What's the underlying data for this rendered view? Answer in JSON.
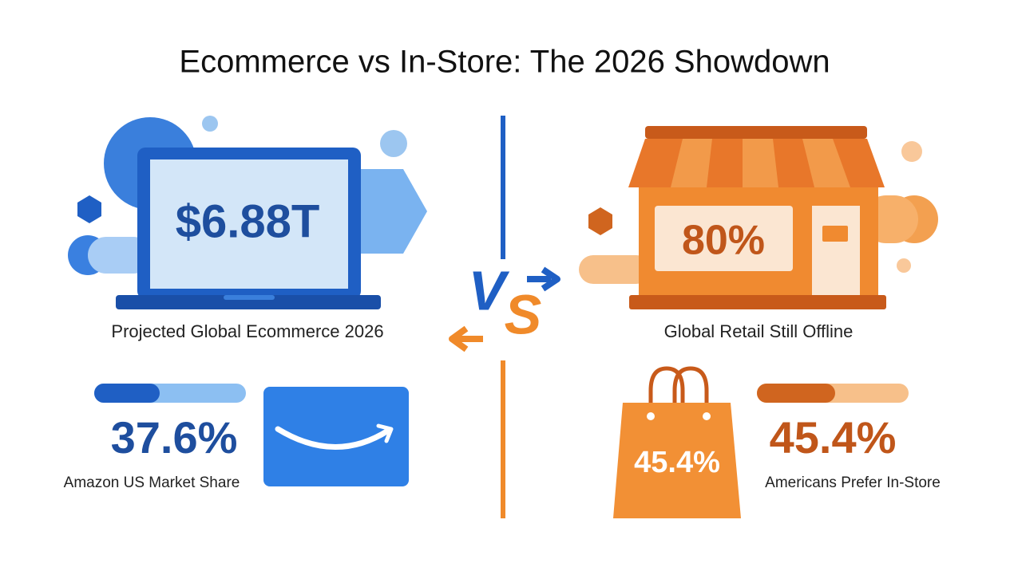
{
  "title": "Ecommerce vs In-Store: The 2026 Showdown",
  "left": {
    "headline_value": "$6.88T",
    "headline_label": "Projected Global Ecommerce 2026",
    "stat_value": "37.6%",
    "stat_label": "Amazon US Market Share"
  },
  "vs_letters": [
    "V",
    "S"
  ],
  "right": {
    "headline_value": "80%",
    "headline_label": "Global Retail Still Offline",
    "bag_value": "45.4%",
    "stat_value": "45.4%",
    "stat_label": "Americans Prefer In-Store"
  }
}
